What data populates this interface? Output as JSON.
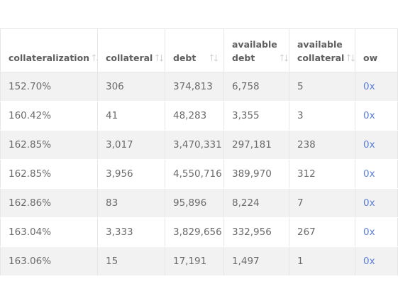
{
  "table": {
    "columns": [
      {
        "label": "collateralization"
      },
      {
        "label": "collateral"
      },
      {
        "label": "debt"
      },
      {
        "label": "available debt"
      },
      {
        "label": "available collateral"
      },
      {
        "label": "ow"
      }
    ],
    "rows": [
      {
        "collateralization": "152.70%",
        "collateral": "306",
        "debt": "374,813",
        "available_debt": "6,758",
        "available_collateral": "5",
        "owner": "0x"
      },
      {
        "collateralization": "160.42%",
        "collateral": "41",
        "debt": "48,283",
        "available_debt": "3,355",
        "available_collateral": "3",
        "owner": "0x"
      },
      {
        "collateralization": "162.85%",
        "collateral": "3,017",
        "debt": "3,470,331",
        "available_debt": "297,181",
        "available_collateral": "238",
        "owner": "0x"
      },
      {
        "collateralization": "162.85%",
        "collateral": "3,956",
        "debt": "4,550,716",
        "available_debt": "389,970",
        "available_collateral": "312",
        "owner": "0x"
      },
      {
        "collateralization": "162.86%",
        "collateral": "83",
        "debt": "95,896",
        "available_debt": "8,224",
        "available_collateral": "7",
        "owner": "0x"
      },
      {
        "collateralization": "163.04%",
        "collateral": "3,333",
        "debt": "3,829,656",
        "available_debt": "332,956",
        "available_collateral": "267",
        "owner": "0x"
      },
      {
        "collateralization": "163.06%",
        "collateral": "15",
        "debt": "17,191",
        "available_debt": "1,497",
        "available_collateral": "1",
        "owner": "0x"
      }
    ]
  },
  "icons": {
    "sort": "sort-arrows-icon"
  },
  "colors": {
    "header_text": "#5f5f5f",
    "cell_text": "#6b6b6b",
    "row_stripe": "#f2f2f2",
    "border": "#e6e6e6",
    "link": "#5b7fd6"
  }
}
